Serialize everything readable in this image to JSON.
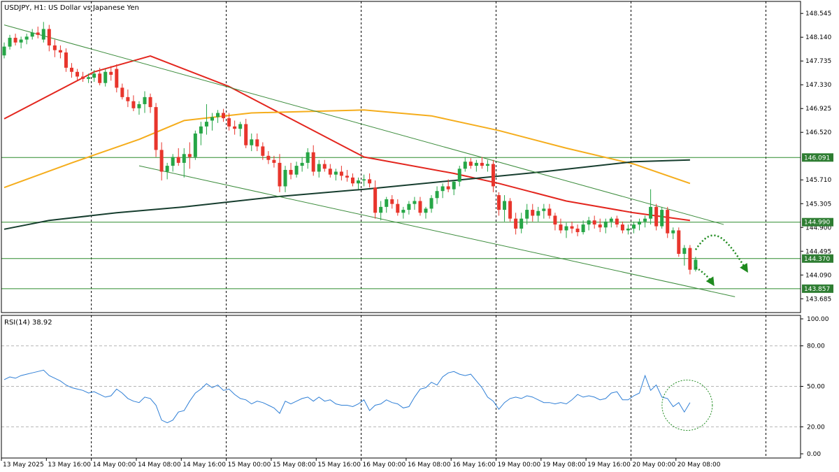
{
  "chart_data": {
    "type": "candlestick",
    "title": "USDJPY, H1:  US Dollar vs Japanese Yen",
    "colors": {
      "up": "#26a646",
      "down": "#e8352c",
      "ma_fast": "#e3261e",
      "ma_mid": "#f5ad1c",
      "ma_slow": "#163d2e",
      "trendline": "#3c8c3c",
      "level_line": "#2e8b2e",
      "price_tag": "#2e7d32",
      "rsi_line": "#2f7fd6",
      "forecast": "#1e8a1e",
      "grid": "#000000",
      "axis": "#000000"
    },
    "price_axis": {
      "ylim": [
        143.45,
        148.75
      ],
      "ticks": [
        "148.545",
        "148.140",
        "147.735",
        "147.330",
        "146.925",
        "146.520",
        "145.710",
        "145.305",
        "144.900",
        "144.495",
        "144.090",
        "143.685"
      ]
    },
    "levels": [
      {
        "value": 146.091,
        "label": "146.091"
      },
      {
        "value": 144.99,
        "label": "144.990"
      },
      {
        "value": 144.37,
        "label": "144.370"
      },
      {
        "value": 143.857,
        "label": "143.857"
      }
    ],
    "time_axis": {
      "labels": [
        "13 May 2025",
        "13 May 16:00",
        "14 May 00:00",
        "14 May 08:00",
        "14 May 16:00",
        "15 May 00:00",
        "15 May 08:00",
        "15 May 16:00",
        "16 May 00:00",
        "16 May 08:00",
        "16 May 16:00",
        "19 May 00:00",
        "19 May 08:00",
        "19 May 16:00",
        "20 May 00:00",
        "20 May 08:00"
      ],
      "label_bars": [
        0,
        8,
        16,
        24,
        32,
        40,
        48,
        56,
        64,
        72,
        80,
        88,
        96,
        104,
        112,
        120
      ],
      "day_separator_bars": [
        16,
        40,
        64,
        88,
        112,
        136
      ]
    },
    "candles": [
      [
        147.83,
        148.05,
        147.78,
        147.98
      ],
      [
        147.98,
        148.18,
        147.93,
        148.13
      ],
      [
        148.13,
        148.2,
        148.0,
        148.05
      ],
      [
        148.05,
        148.15,
        147.95,
        148.1
      ],
      [
        148.1,
        148.2,
        148.02,
        148.15
      ],
      [
        148.15,
        148.28,
        148.1,
        148.22
      ],
      [
        148.22,
        148.32,
        148.12,
        148.18
      ],
      [
        148.1,
        148.4,
        148.05,
        148.28
      ],
      [
        148.28,
        148.35,
        147.9,
        148.0
      ],
      [
        148.0,
        148.1,
        147.8,
        147.92
      ],
      [
        147.92,
        148.0,
        147.78,
        147.88
      ],
      [
        147.88,
        147.95,
        147.55,
        147.62
      ],
      [
        147.62,
        147.7,
        147.45,
        147.55
      ],
      [
        147.55,
        147.6,
        147.4,
        147.47
      ],
      [
        147.47,
        147.55,
        147.38,
        147.43
      ],
      [
        147.43,
        147.52,
        147.36,
        147.46
      ],
      [
        147.45,
        147.58,
        147.38,
        147.52
      ],
      [
        147.52,
        147.62,
        147.32,
        147.36
      ],
      [
        147.36,
        147.6,
        147.3,
        147.55
      ],
      [
        147.55,
        147.65,
        147.4,
        147.5
      ],
      [
        147.6,
        147.68,
        147.2,
        147.28
      ],
      [
        147.28,
        147.35,
        147.08,
        147.12
      ],
      [
        147.12,
        147.25,
        146.95,
        147.05
      ],
      [
        147.05,
        147.15,
        146.88,
        146.93
      ],
      [
        146.93,
        147.05,
        146.82,
        147.0
      ],
      [
        147.0,
        147.22,
        146.85,
        147.12
      ],
      [
        147.12,
        147.18,
        146.85,
        146.95
      ],
      [
        146.95,
        147.02,
        146.1,
        146.22
      ],
      [
        146.22,
        146.35,
        145.7,
        145.85
      ],
      [
        145.85,
        146.0,
        145.72,
        145.95
      ],
      [
        145.95,
        146.15,
        145.85,
        146.1
      ],
      [
        146.1,
        146.25,
        145.95,
        146.0
      ],
      [
        146.0,
        146.25,
        145.75,
        146.15
      ],
      [
        146.15,
        146.35,
        145.9,
        146.1
      ],
      [
        146.1,
        146.55,
        146.05,
        146.5
      ],
      [
        146.5,
        146.7,
        146.3,
        146.62
      ],
      [
        146.62,
        147.0,
        146.48,
        146.7
      ],
      [
        146.72,
        146.85,
        146.55,
        146.78
      ],
      [
        146.78,
        146.9,
        146.68,
        146.85
      ],
      [
        146.85,
        146.92,
        146.7,
        146.76
      ],
      [
        146.76,
        146.85,
        146.55,
        146.62
      ],
      [
        146.62,
        146.72,
        146.48,
        146.58
      ],
      [
        146.58,
        146.7,
        146.45,
        146.66
      ],
      [
        146.66,
        146.75,
        146.25,
        146.3
      ],
      [
        146.3,
        146.5,
        146.2,
        146.4
      ],
      [
        146.4,
        146.5,
        146.2,
        146.28
      ],
      [
        146.28,
        146.35,
        146.05,
        146.12
      ],
      [
        146.12,
        146.2,
        145.98,
        146.05
      ],
      [
        146.05,
        146.12,
        145.92,
        146.0
      ],
      [
        146.0,
        146.15,
        145.5,
        145.6
      ],
      [
        145.6,
        145.95,
        145.5,
        145.88
      ],
      [
        145.88,
        146.0,
        145.72,
        145.8
      ],
      [
        145.8,
        146.02,
        145.75,
        145.95
      ],
      [
        145.95,
        146.1,
        145.85,
        146.0
      ],
      [
        146.0,
        146.25,
        145.9,
        146.18
      ],
      [
        146.18,
        146.3,
        145.78,
        145.85
      ],
      [
        145.85,
        146.05,
        145.75,
        145.98
      ],
      [
        145.98,
        146.05,
        145.85,
        145.9
      ],
      [
        145.9,
        145.98,
        145.75,
        145.8
      ],
      [
        145.8,
        145.9,
        145.7,
        145.85
      ],
      [
        145.85,
        145.95,
        145.7,
        145.78
      ],
      [
        145.78,
        145.88,
        145.68,
        145.75
      ],
      [
        145.75,
        145.82,
        145.6,
        145.65
      ],
      [
        145.65,
        145.75,
        145.55,
        145.7
      ],
      [
        145.7,
        145.8,
        145.6,
        145.72
      ],
      [
        145.72,
        145.82,
        145.58,
        145.65
      ],
      [
        145.58,
        145.7,
        145.05,
        145.15
      ],
      [
        145.15,
        145.35,
        145.02,
        145.25
      ],
      [
        145.25,
        145.42,
        145.15,
        145.38
      ],
      [
        145.38,
        145.45,
        145.22,
        145.3
      ],
      [
        145.3,
        145.38,
        145.1,
        145.15
      ],
      [
        145.15,
        145.25,
        145.05,
        145.2
      ],
      [
        145.2,
        145.35,
        145.12,
        145.3
      ],
      [
        145.3,
        145.42,
        145.2,
        145.35
      ],
      [
        145.35,
        145.42,
        145.1,
        145.15
      ],
      [
        145.15,
        145.25,
        145.05,
        145.22
      ],
      [
        145.22,
        145.45,
        145.15,
        145.4
      ],
      [
        145.4,
        145.6,
        145.3,
        145.52
      ],
      [
        145.52,
        145.65,
        145.4,
        145.6
      ],
      [
        145.6,
        145.72,
        145.5,
        145.55
      ],
      [
        145.55,
        145.7,
        145.45,
        145.68
      ],
      [
        145.68,
        145.95,
        145.6,
        145.9
      ],
      [
        145.9,
        146.1,
        145.85,
        146.02
      ],
      [
        146.02,
        146.08,
        145.9,
        145.95
      ],
      [
        145.95,
        146.05,
        145.85,
        146.0
      ],
      [
        146.0,
        146.1,
        145.9,
        145.95
      ],
      [
        145.95,
        146.05,
        145.85,
        145.98
      ],
      [
        145.98,
        146.05,
        145.5,
        145.6
      ],
      [
        145.45,
        145.5,
        145.1,
        145.2
      ],
      [
        145.2,
        145.45,
        145.0,
        145.35
      ],
      [
        145.35,
        145.4,
        145.0,
        145.05
      ],
      [
        145.05,
        145.15,
        144.78,
        144.88
      ],
      [
        144.88,
        145.15,
        144.8,
        145.05
      ],
      [
        145.05,
        145.3,
        144.95,
        145.2
      ],
      [
        145.2,
        145.3,
        145.0,
        145.1
      ],
      [
        145.1,
        145.25,
        145.0,
        145.18
      ],
      [
        145.18,
        145.3,
        145.05,
        145.22
      ],
      [
        145.22,
        145.3,
        145.05,
        145.1
      ],
      [
        145.1,
        145.15,
        144.85,
        144.95
      ],
      [
        144.95,
        145.05,
        144.8,
        144.85
      ],
      [
        144.85,
        144.98,
        144.72,
        144.92
      ],
      [
        144.92,
        145.0,
        144.8,
        144.88
      ],
      [
        144.88,
        144.95,
        144.75,
        144.82
      ],
      [
        144.82,
        145.02,
        144.78,
        144.95
      ],
      [
        144.95,
        145.08,
        144.85,
        145.02
      ],
      [
        145.02,
        145.1,
        144.88,
        144.95
      ],
      [
        144.95,
        145.05,
        144.82,
        144.9
      ],
      [
        144.9,
        145.05,
        144.8,
        145.0
      ],
      [
        145.0,
        145.08,
        144.9,
        145.05
      ],
      [
        145.05,
        145.1,
        144.9,
        144.95
      ],
      [
        144.95,
        145.0,
        144.8,
        144.85
      ],
      [
        144.85,
        144.95,
        144.78,
        144.88
      ],
      [
        144.88,
        145.0,
        144.8,
        144.95
      ],
      [
        144.95,
        145.05,
        144.85,
        145.0
      ],
      [
        145.0,
        145.1,
        144.9,
        145.05
      ],
      [
        145.05,
        145.55,
        144.95,
        145.25
      ],
      [
        145.25,
        145.3,
        144.85,
        144.92
      ],
      [
        144.92,
        145.25,
        144.88,
        145.2
      ],
      [
        145.2,
        145.25,
        144.72,
        144.8
      ],
      [
        144.8,
        144.9,
        144.7,
        144.85
      ],
      [
        144.85,
        144.9,
        144.4,
        144.45
      ],
      [
        144.45,
        144.6,
        144.25,
        144.55
      ],
      [
        144.55,
        144.6,
        144.1,
        144.18
      ],
      [
        144.18,
        144.4,
        144.15,
        144.35
      ]
    ],
    "moving_averages": [
      {
        "name": "MA fast",
        "color_key": "ma_fast",
        "width": 2,
        "points": [
          [
            0,
            146.75
          ],
          [
            16,
            147.55
          ],
          [
            26,
            147.82
          ],
          [
            40,
            147.3
          ],
          [
            56,
            146.5
          ],
          [
            64,
            146.1
          ],
          [
            80,
            145.82
          ],
          [
            88,
            145.65
          ],
          [
            100,
            145.35
          ],
          [
            112,
            145.15
          ],
          [
            122,
            145.02
          ]
        ]
      },
      {
        "name": "MA mid",
        "color_key": "ma_mid",
        "width": 2,
        "points": [
          [
            0,
            145.58
          ],
          [
            12,
            146.0
          ],
          [
            24,
            146.4
          ],
          [
            32,
            146.72
          ],
          [
            44,
            146.85
          ],
          [
            56,
            146.88
          ],
          [
            64,
            146.9
          ],
          [
            76,
            146.8
          ],
          [
            88,
            146.55
          ],
          [
            100,
            146.25
          ],
          [
            112,
            145.98
          ],
          [
            122,
            145.65
          ]
        ]
      },
      {
        "name": "MA slow",
        "color_key": "ma_slow",
        "width": 2,
        "points": [
          [
            0,
            144.87
          ],
          [
            8,
            145.02
          ],
          [
            20,
            145.15
          ],
          [
            32,
            145.25
          ],
          [
            48,
            145.42
          ],
          [
            64,
            145.55
          ],
          [
            80,
            145.7
          ],
          [
            96,
            145.85
          ],
          [
            112,
            146.02
          ],
          [
            122,
            146.05
          ]
        ]
      }
    ],
    "trend_channel": [
      {
        "points": [
          [
            0,
            148.35
          ],
          [
            128,
            144.95
          ]
        ]
      },
      {
        "points": [
          [
            24,
            145.95
          ],
          [
            130,
            143.72
          ]
        ]
      }
    ],
    "forecast_arrows": [
      {
        "points": [
          [
            123,
            144.52
          ],
          [
            126,
            144.95
          ],
          [
            128,
            144.8
          ],
          [
            132,
            144.18
          ]
        ]
      },
      {
        "points": [
          [
            123,
            144.22
          ],
          [
            125,
            144.1
          ],
          [
            126,
            143.95
          ]
        ]
      }
    ],
    "rsi": {
      "label": "RSI(14) 38.92",
      "ylim": [
        0,
        100
      ],
      "ticks": [
        "100.00",
        "80.00",
        "50.00",
        "20.00",
        "0.00"
      ],
      "dashed_levels": [
        80,
        50,
        20
      ],
      "values": [
        55,
        57,
        56,
        58,
        59,
        60,
        61,
        62,
        58,
        56,
        54,
        51,
        49,
        48,
        47,
        45,
        46,
        44,
        42,
        43,
        48,
        45,
        41,
        39,
        38,
        42,
        41,
        36,
        25,
        23,
        25,
        31,
        32,
        39,
        45,
        48,
        52,
        49,
        51,
        47,
        48,
        44,
        41,
        40,
        37,
        39,
        38,
        36,
        34,
        30,
        39,
        37,
        39,
        41,
        42,
        39,
        42,
        39,
        40,
        37,
        36,
        36,
        35,
        37,
        40,
        32,
        36,
        37,
        40,
        38,
        37,
        34,
        35,
        42,
        48,
        49,
        53,
        51,
        57,
        60,
        61,
        59,
        58,
        59,
        54,
        49,
        42,
        39,
        33,
        38,
        41,
        42,
        41,
        43,
        42,
        40,
        38,
        38,
        37,
        38,
        37,
        40,
        44,
        42,
        43,
        42,
        40,
        41,
        45,
        46,
        40,
        40,
        43,
        45,
        58,
        47,
        51,
        42,
        41,
        35,
        38,
        31,
        38
      ]
    },
    "annotations": [
      {
        "type": "dotted-circle",
        "on": "rsi",
        "bar": 121.5,
        "value": 36
      }
    ]
  }
}
